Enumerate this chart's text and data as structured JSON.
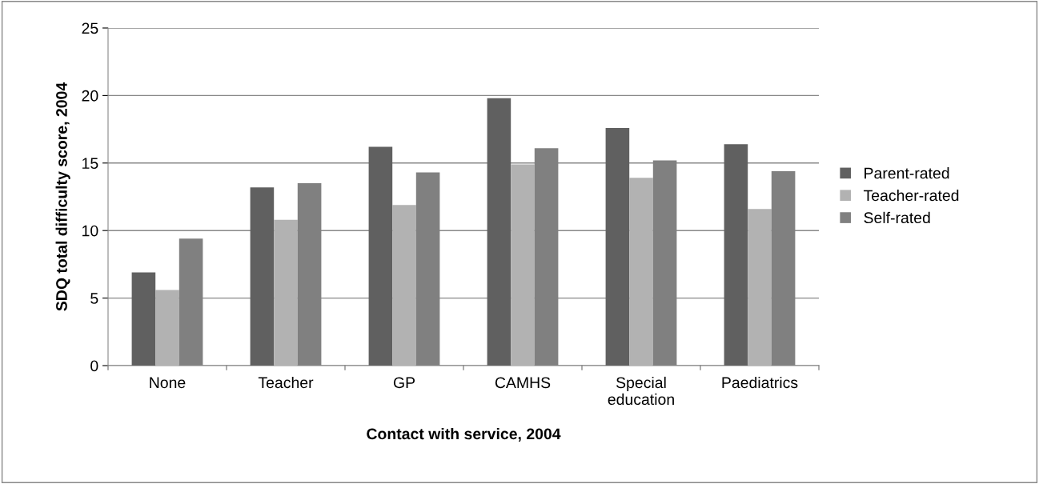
{
  "chart_data": {
    "type": "bar",
    "xlabel": "Contact with service, 2004",
    "ylabel": "SDQ total difficulty score, 2004",
    "categories": [
      "None",
      "Teacher",
      "GP",
      "CAMHS",
      "Special education",
      "Paediatrics"
    ],
    "series": [
      {
        "name": "Parent-rated",
        "color": "#606060",
        "values": [
          6.9,
          13.2,
          16.2,
          19.8,
          17.6,
          16.4
        ]
      },
      {
        "name": "Teacher-rated",
        "color": "#b2b2b2",
        "values": [
          5.6,
          10.8,
          11.9,
          14.9,
          13.9,
          11.6
        ]
      },
      {
        "name": "Self-rated",
        "color": "#808080",
        "values": [
          9.4,
          13.5,
          14.3,
          16.1,
          15.2,
          14.4
        ]
      }
    ],
    "ylim": [
      0,
      25
    ],
    "yticks": [
      0,
      5,
      10,
      15,
      20,
      25
    ],
    "grid": "y",
    "legend": "right"
  }
}
